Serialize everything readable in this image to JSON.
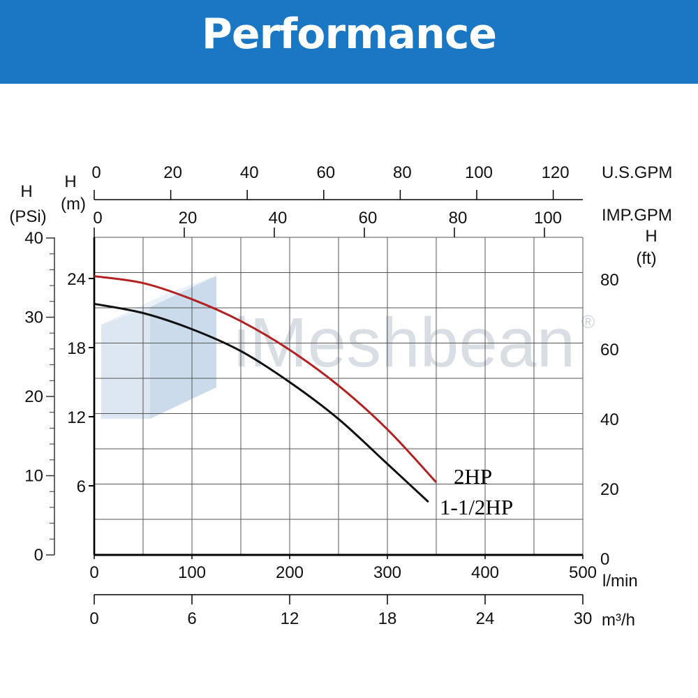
{
  "header": {
    "title": "Performance"
  },
  "watermark": {
    "text": "iMeshbean",
    "mark": "®"
  },
  "chart_data": {
    "type": "line",
    "grid": true,
    "x": [
      0,
      50,
      100,
      150,
      200,
      250,
      300,
      350
    ],
    "xlim": [
      0,
      500
    ],
    "ylim_m": [
      0,
      28
    ],
    "series": [
      {
        "name": "2HP",
        "color": "#b22222",
        "x": [
          0,
          50,
          100,
          150,
          200,
          250,
          300,
          350
        ],
        "values": [
          24.2,
          23.6,
          22.2,
          20.3,
          17.8,
          14.7,
          10.9,
          6.3
        ]
      },
      {
        "name": "1-1/2HP",
        "color": "#111111",
        "x": [
          0,
          50,
          100,
          150,
          200,
          250,
          300,
          342
        ],
        "values": [
          21.8,
          21.0,
          19.6,
          17.7,
          15.0,
          11.8,
          7.9,
          4.6
        ]
      }
    ],
    "axes": {
      "left_psi": {
        "title": [
          "H",
          "(PSi)"
        ],
        "ticks": [
          "40",
          "30",
          "20",
          "10",
          "0"
        ],
        "values": [
          40,
          30,
          20,
          10,
          0
        ]
      },
      "left_m": {
        "title": [
          "H",
          "(m)"
        ],
        "ticks": [
          "24",
          "18",
          "12",
          "6"
        ],
        "values": [
          24,
          18,
          12,
          6
        ]
      },
      "right_ft": {
        "title": [
          "H",
          "(ft)"
        ],
        "ticks": [
          "80",
          "60",
          "40",
          "20",
          "0"
        ],
        "values": [
          80,
          60,
          40,
          20,
          0
        ]
      },
      "bottom_lmin": {
        "title": "l/min",
        "ticks": [
          "0",
          "100",
          "200",
          "300",
          "400",
          "500"
        ],
        "values": [
          0,
          100,
          200,
          300,
          400,
          500
        ]
      },
      "bottom_m3h": {
        "title": "m³/h",
        "ticks": [
          "0",
          "6",
          "12",
          "18",
          "24",
          "30"
        ],
        "values": [
          0,
          6,
          12,
          18,
          24,
          30
        ]
      },
      "top_usgpm": {
        "title": "U.S.GPM",
        "ticks": [
          "0",
          "20",
          "40",
          "60",
          "80",
          "100",
          "120"
        ],
        "values": [
          0,
          20,
          40,
          60,
          80,
          100,
          120
        ]
      },
      "top_impgpm": {
        "title": "IMP.GPM",
        "ticks": [
          "0",
          "20",
          "40",
          "60",
          "80",
          "100"
        ],
        "values": [
          0,
          20,
          40,
          60,
          80,
          100
        ]
      }
    }
  }
}
